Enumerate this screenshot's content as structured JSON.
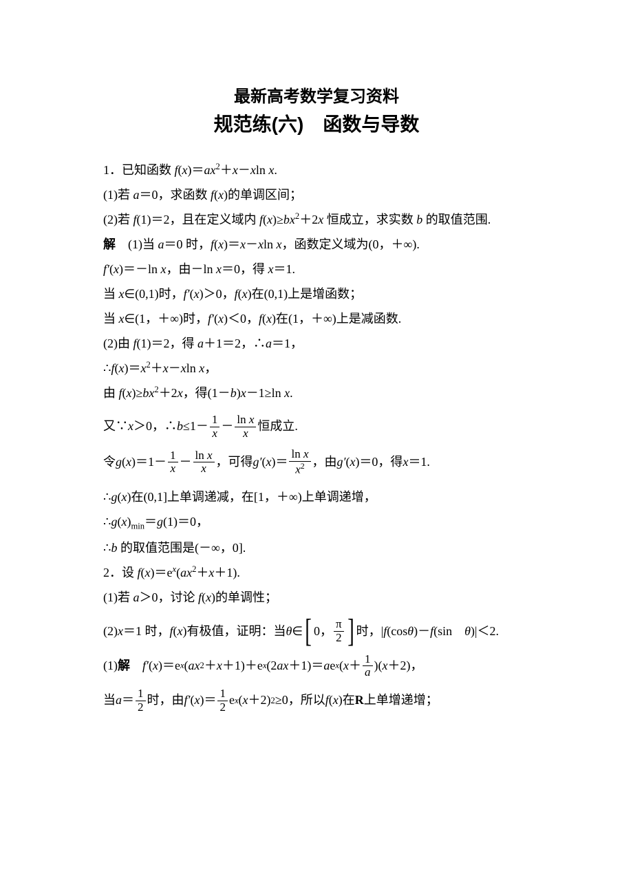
{
  "title1": "最新高考数学复习资料",
  "title2_a": "规范练(六)",
  "title2_b": "函数与导数",
  "l1_a": "1．已知函数 ",
  "l1_b": "f",
  "l1_c": "(",
  "l1_d": "x",
  "l1_e": ")＝",
  "l1_f": "ax",
  "l1_g": "2",
  "l1_h": "＋",
  "l1_i": "x",
  "l1_j": "－",
  "l1_k": "x",
  "l1_l": "ln ",
  "l1_m": "x",
  "l1_n": ".",
  "l2_a": "(1)若 ",
  "l2_b": "a",
  "l2_c": "＝0，求函数 ",
  "l2_d": "f",
  "l2_e": "(",
  "l2_f": "x",
  "l2_g": ")的单调区间；",
  "l3_a": "(2)若 ",
  "l3_b": "f",
  "l3_c": "(1)＝2，且在定义域内 ",
  "l3_d": "f",
  "l3_e": "(",
  "l3_f": "x",
  "l3_g": ")≥",
  "l3_h": "bx",
  "l3_i": "2",
  "l3_j": "＋2",
  "l3_k": "x",
  "l3_l": " 恒成立，求实数 ",
  "l3_m": "b",
  "l3_n": " 的取值范围.",
  "l4_a": "解",
  "l4_b": "　(1)当 ",
  "l4_c": "a",
  "l4_d": "＝0 时，",
  "l4_e": "f",
  "l4_f": "(",
  "l4_g": "x",
  "l4_h": ")＝",
  "l4_i": "x",
  "l4_j": "－",
  "l4_k": "x",
  "l4_l": "ln ",
  "l4_m": "x",
  "l4_n": "，函数定义域为(0，＋∞).",
  "l5_a": "f′",
  "l5_b": "(",
  "l5_c": "x",
  "l5_d": ")＝－ln ",
  "l5_e": "x",
  "l5_f": "，由－ln ",
  "l5_g": "x",
  "l5_h": "＝0，得 ",
  "l5_i": "x",
  "l5_j": "＝1.",
  "l6_a": "当 ",
  "l6_b": "x",
  "l6_c": "∈(0,1)时，",
  "l6_d": "f′",
  "l6_e": "(",
  "l6_f": "x",
  "l6_g": ")＞0，",
  "l6_h": "f",
  "l6_i": "(",
  "l6_j": "x",
  "l6_k": ")在(0,1)上是增函数；",
  "l7_a": "当 ",
  "l7_b": "x",
  "l7_c": "∈(1，＋∞)时，",
  "l7_d": "f′",
  "l7_e": "(",
  "l7_f": "x",
  "l7_g": ")＜0，",
  "l7_h": "f",
  "l7_i": "(",
  "l7_j": "x",
  "l7_k": ")在(1，＋∞)上是减函数.",
  "l8_a": "(2)由 ",
  "l8_b": "f",
  "l8_c": "(1)＝2，得 ",
  "l8_d": "a",
  "l8_e": "＋1＝2，∴",
  "l8_f": "a",
  "l8_g": "＝1，",
  "l9_a": "∴",
  "l9_b": "f",
  "l9_c": "(",
  "l9_d": "x",
  "l9_e": ")＝",
  "l9_f": "x",
  "l9_g": "2",
  "l9_h": "＋",
  "l9_i": "x",
  "l9_j": "－",
  "l9_k": "x",
  "l9_l": "ln ",
  "l9_m": "x",
  "l9_n": "，",
  "l10_a": "由 ",
  "l10_b": "f",
  "l10_c": "(",
  "l10_d": "x",
  "l10_e": ")≥",
  "l10_f": "bx",
  "l10_g": "2",
  "l10_h": "＋2",
  "l10_i": "x",
  "l10_j": "，得(1－",
  "l10_k": "b",
  "l10_l": ")",
  "l10_m": "x",
  "l10_n": "－1≥ln ",
  "l10_o": "x",
  "l10_p": ".",
  "l11_a": "又∵",
  "l11_b": "x",
  "l11_c": "＞0，∴",
  "l11_d": "b",
  "l11_e": "≤1－",
  "l11_f1n": "1",
  "l11_f1d": "x",
  "l11_f": "－",
  "l11_f2n": "ln x",
  "l11_f2d": "x",
  "l11_g": "恒成立.",
  "l12_a": "令 ",
  "l12_b": "g",
  "l12_c": "(",
  "l12_d": "x",
  "l12_e": ")＝1－",
  "l12_f1n": "1",
  "l12_f1d": "x",
  "l12_f": "－",
  "l12_f2n": "ln x",
  "l12_f2d": "x",
  "l12_g": "，可得 ",
  "l12_h": "g′",
  "l12_i": "(",
  "l12_j": "x",
  "l12_k": ")＝",
  "l12_f3n": "ln x",
  "l12_f3d": "x",
  "l12_f3d2": "2",
  "l12_l": "，由 ",
  "l12_m": "g′",
  "l12_n": "(",
  "l12_o": "x",
  "l12_p": ")＝0，得 ",
  "l12_q": "x",
  "l12_r": "＝1.",
  "l13_a": "∴",
  "l13_b": "g",
  "l13_c": "(",
  "l13_d": "x",
  "l13_e": ")在(0,1]上单调递减，在[1，＋∞)上单调递增，",
  "l14_a": "∴",
  "l14_b": "g",
  "l14_c": "(",
  "l14_d": "x",
  "l14_e": ")",
  "l14_f": "min",
  "l14_g": "＝",
  "l14_h": "g",
  "l14_i": "(1)＝0，",
  "l15_a": "∴",
  "l15_b": "b",
  "l15_c": " 的取值范围是(－∞，0].",
  "l16_a": "2．设 ",
  "l16_b": "f",
  "l16_c": "(",
  "l16_d": "x",
  "l16_e": ")＝e",
  "l16_f": "x",
  "l16_g": "(",
  "l16_h": "ax",
  "l16_i": "2",
  "l16_j": "＋",
  "l16_k": "x",
  "l16_l": "＋1).",
  "l17_a": "(1)若 ",
  "l17_b": "a",
  "l17_c": "＞0，讨论 ",
  "l17_d": "f",
  "l17_e": "(",
  "l17_f": "x",
  "l17_g": ")的单调性；",
  "l18_a": "(2)",
  "l18_b": "x",
  "l18_c": "＝1 时，",
  "l18_d": "f",
  "l18_e": "(",
  "l18_f": "x",
  "l18_g": ")有极值，证明：当 ",
  "l18_h": "θ",
  "l18_i": "∈",
  "l18_j": "0，",
  "l18_kn": "π",
  "l18_kd": "2",
  "l18_l": "时，|",
  "l18_m": "f",
  "l18_n": "(cos ",
  "l18_o": "θ",
  "l18_p": ")－",
  "l18_q": "f",
  "l18_r": "(sin　",
  "l18_s": "θ",
  "l18_t": ")|＜2.",
  "l19_a": "(1)",
  "l19_b": "解",
  "l19_c": "　",
  "l19_d": "f′",
  "l19_e": "(",
  "l19_f": "x",
  "l19_g": ")＝e",
  "l19_h": "x",
  "l19_i": "(",
  "l19_j": "ax",
  "l19_k": "2",
  "l19_l": "＋",
  "l19_m": "x",
  "l19_n": "＋1)＋e",
  "l19_o": "x",
  "l19_p": "(2",
  "l19_q": "ax",
  "l19_r": "＋1)＝",
  "l19_s": "a",
  "l19_t": "e",
  "l19_u": "x",
  "l19_v": "(",
  "l19_w": "x",
  "l19_x": "＋",
  "l19_yn": "1",
  "l19_yd": "a",
  "l19_z": ")(",
  "l19_aa": "x",
  "l19_ab": "＋2)，",
  "l20_a": "当 ",
  "l20_b": "a",
  "l20_c": "＝",
  "l20_dn": "1",
  "l20_dd": "2",
  "l20_e": "时，由 ",
  "l20_f": "f′",
  "l20_g": "(",
  "l20_h": "x",
  "l20_i": ")＝",
  "l20_jn": "1",
  "l20_jd": "2",
  "l20_k": "e",
  "l20_l": "x",
  "l20_m": "(",
  "l20_n": "x",
  "l20_o": "＋2)",
  "l20_p": "2",
  "l20_q": "≥0，所以 ",
  "l20_r": "f",
  "l20_s": "(",
  "l20_t": "x",
  "l20_u": ")在 ",
  "l20_v": "R",
  "l20_w": " 上单增递增；"
}
